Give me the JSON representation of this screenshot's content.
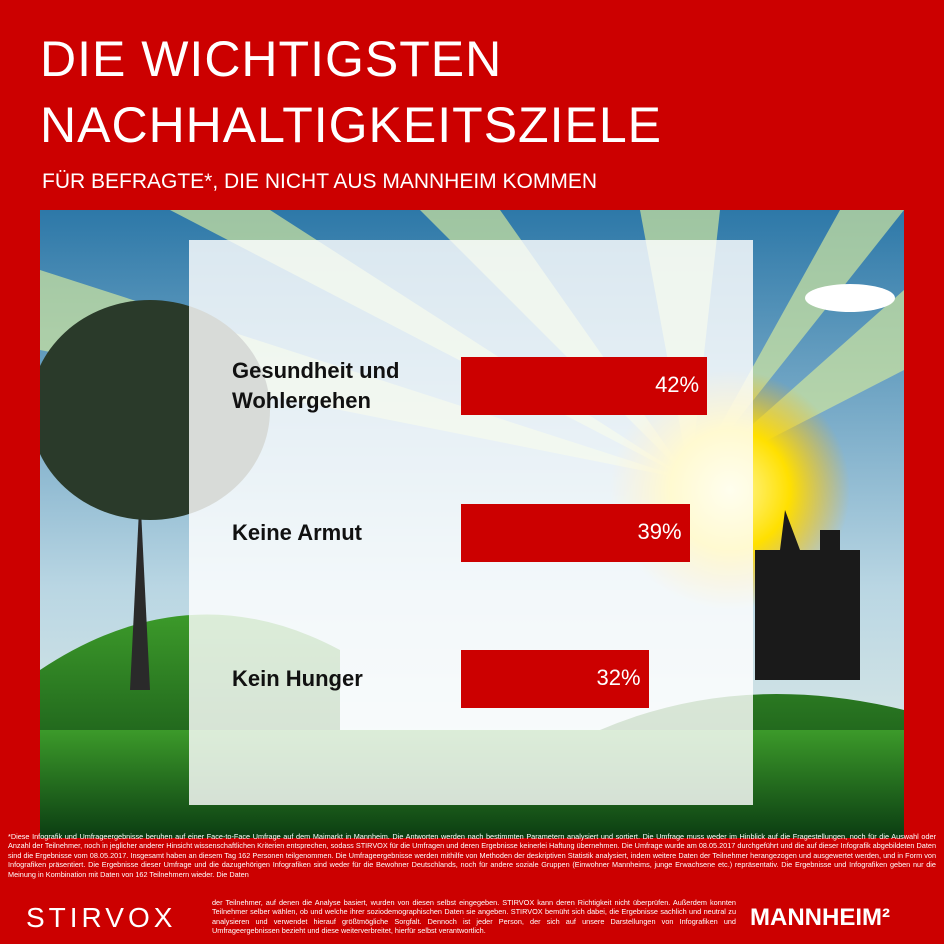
{
  "chart_data": {
    "type": "hbar",
    "title": "DIE WICHTIGSTEN NACHHALTIGKEITSZIELE",
    "subtitle": "FÜR BEFRAGTE*, DIE NICHT AUS MANNHEIM KOMMEN",
    "categories": [
      "Gesundheit und Wohlergehen",
      "Keine Armut",
      "Kein Hunger"
    ],
    "values": [
      42,
      39,
      32
    ],
    "value_labels": [
      "42%",
      "39%",
      "32%"
    ],
    "color": "#cc0000"
  },
  "footnote": [
    "*Diese Infografik und Umfrageergebnisse beruhen auf einer Face-to-Face Umfrage auf dem Maimarkt in Mannheim. Die Antworten werden nach bestimmten Parametern analysiert und sortiert. Die Umfrage muss weder im Hinblick auf die Fragestellungen, noch für die Auswahl oder Anzahl der Teilnehmer, noch in jeglicher anderer Hinsicht wissenschaftlichen Kriterien entsprechen, sodass STIRVOX für die Umfragen und deren Ergebnisse keinerlei Haftung übernehmen. Die Umfrage wurde am 08.05.2017 durchgeführt und die auf dieser Infografik abgebildeten Daten sind die Ergebnisse vom 08.05.2017. Insgesamt haben an diesem Tag 162 Personen teilgenommen. Die Umfrageergebnisse werden mithilfe von Methoden der deskriptiven Statistik analysiert, indem weitere Daten der Teilnehmer herangezogen und ausgewertet werden, und in Form von Infografiken präsentiert. Die Ergebnisse dieser Umfrage und die dazugehörigen Infografiken sind weder für die Bewohner Deutschlands, noch für andere soziale Gruppen (Einwohner Mannheims, junge Erwachsene etc.) repräsentativ. Die Ergebnisse und Infografiken geben nur die Meinung in Kombination mit Daten von 162 Teilnehmern wieder. Die Daten",
    "der Teilnehmer, auf denen die Analyse basiert, wurden von diesen selbst eingegeben. STIRVOX kann deren Richtigkeit nicht überprüfen. Außerdem konnten Teilnehmer selber wählen, ob und welche ihrer soziodemographischen Daten sie angeben. STIRVOX bemüht sich dabei, die Ergebnisse sachlich und neutral zu analysieren und verwendet hierauf größtmögliche Sorgfalt. Dennoch ist jeder Person, der sich auf unsere Darstellungen von Infografiken und Umfrageergebnissen bezieht und diese weiterverbreitet, hierfür selbst verantwortlich."
  ],
  "logos": {
    "left": "STIRVOX",
    "right": "MANNHEIM²"
  }
}
